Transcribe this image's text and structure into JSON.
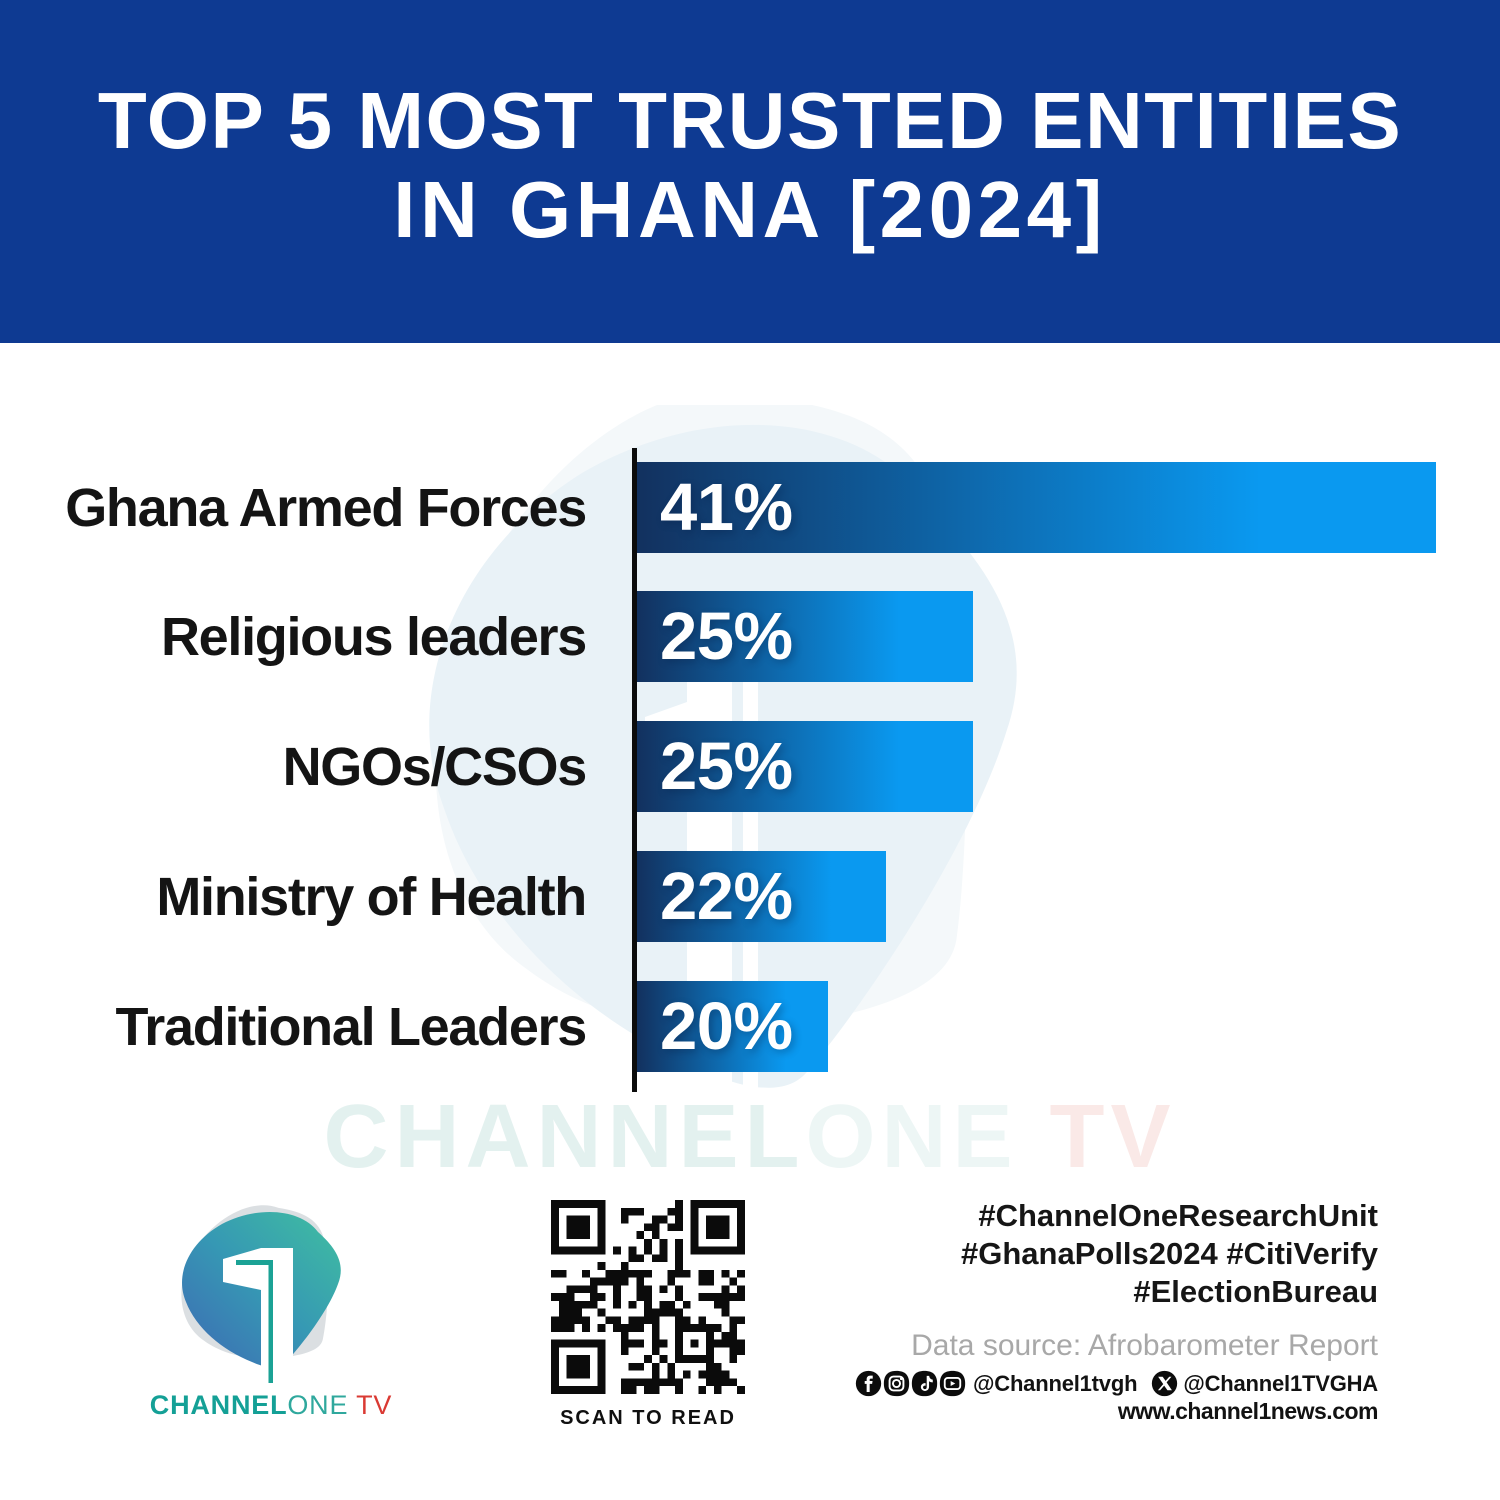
{
  "header": {
    "title_line1": "TOP 5 MOST TRUSTED ENTITIES",
    "title_line2": "IN GHANA [2024]",
    "background_color": "#0e3a92",
    "text_color": "#ffffff"
  },
  "chart_data": {
    "type": "bar",
    "orientation": "horizontal",
    "categories": [
      "Ghana Armed Forces",
      "Religious leaders",
      "NGOs/CSOs",
      "Ministry of Health",
      "Traditional Leaders"
    ],
    "values": [
      41,
      25,
      25,
      22,
      20
    ],
    "unit": "%",
    "xlim": [
      13.4,
      41
    ],
    "grid": false,
    "legend": false,
    "bar_gradient_left": "#12315f",
    "bar_gradient_right": "#0a99f0",
    "axis_color": "#0c0c0c",
    "label_color": "#141414",
    "value_label_color": "#ffffff"
  },
  "watermark": {
    "part1": "CHANNEL",
    "part2": "ONE",
    "part3": " TV",
    "part1_color": "#e3f1ef",
    "part2_color": "#edf6f5",
    "part3_color": "#fae9e7",
    "shield_color": "#e9f2f7"
  },
  "footer": {
    "logo": {
      "part1": "CHANNEL",
      "part2": "ONE",
      "part3": " TV",
      "teal": "#14a096",
      "red": "#da3a33"
    },
    "qr_label": "SCAN TO READ",
    "hashtags": {
      "line1": "#ChannelOneResearchUnit",
      "line2": "#GhanaPolls2024 #CitiVerify",
      "line3": "#ElectionBureau"
    },
    "data_source": "Data source: Afrobarometer Report",
    "social": {
      "handle1": "@Channel1tvgh",
      "handle2": "@Channel1TVGHA"
    },
    "website": "www.channel1news.com"
  }
}
